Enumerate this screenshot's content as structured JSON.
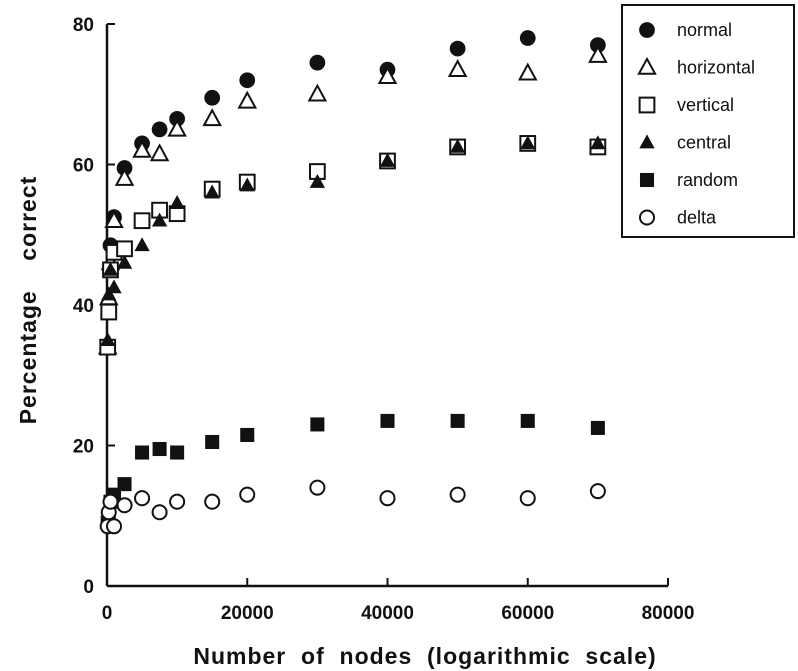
{
  "chart_data": {
    "type": "scatter",
    "xlabel": "Number  of  nodes  (logarithmic  scale)",
    "ylabel": "Percentage    correct",
    "xlim": [
      0,
      80000
    ],
    "ylim": [
      0,
      80
    ],
    "xticks": [
      0,
      20000,
      40000,
      60000,
      80000
    ],
    "yticks": [
      0,
      20,
      40,
      60,
      80
    ],
    "grid": false,
    "legend_position": "top-right",
    "series": [
      {
        "name": "normal",
        "marker": "circle-filled",
        "x": [
          100,
          250,
          500,
          1000,
          2500,
          5000,
          7500,
          10000,
          15000,
          20000,
          30000,
          40000,
          50000,
          60000,
          70000
        ],
        "y": [
          34,
          40,
          48.5,
          52.5,
          59.5,
          63,
          65,
          66.5,
          69.5,
          72,
          74.5,
          73.5,
          76.5,
          78,
          77
        ]
      },
      {
        "name": "horizontal",
        "marker": "triangle-open",
        "x": [
          100,
          250,
          500,
          1000,
          2500,
          5000,
          7500,
          10000,
          15000,
          20000,
          30000,
          40000,
          50000,
          60000,
          70000
        ],
        "y": [
          34,
          41,
          46,
          52,
          58,
          62,
          61.5,
          65,
          66.5,
          69,
          70,
          72.5,
          73.5,
          73,
          75.5
        ]
      },
      {
        "name": "vertical",
        "marker": "square-open",
        "x": [
          100,
          250,
          500,
          1000,
          2500,
          5000,
          7500,
          10000,
          15000,
          20000,
          30000,
          40000,
          50000,
          60000,
          70000
        ],
        "y": [
          34,
          39,
          45,
          47.5,
          48,
          52,
          53.5,
          53,
          56.5,
          57.5,
          59,
          60.5,
          62.5,
          63,
          62.5
        ]
      },
      {
        "name": "central",
        "marker": "triangle-filled",
        "x": [
          100,
          250,
          500,
          1000,
          2500,
          5000,
          7500,
          10000,
          15000,
          20000,
          30000,
          40000,
          50000,
          60000,
          70000
        ],
        "y": [
          35,
          41.5,
          45,
          42.5,
          46,
          48.5,
          52,
          54.5,
          56,
          57,
          57.5,
          60.5,
          62.5,
          63,
          63
        ]
      },
      {
        "name": "random",
        "marker": "square-filled",
        "x": [
          100,
          250,
          500,
          1000,
          2500,
          5000,
          7500,
          10000,
          15000,
          20000,
          30000,
          40000,
          50000,
          60000,
          70000
        ],
        "y": [
          9,
          10,
          12,
          13,
          14.5,
          19,
          19.5,
          19,
          20.5,
          21.5,
          23,
          23.5,
          23.5,
          23.5,
          22.5
        ]
      },
      {
        "name": "delta",
        "marker": "circle-open",
        "x": [
          100,
          250,
          500,
          1000,
          2500,
          5000,
          7500,
          10000,
          15000,
          20000,
          30000,
          40000,
          50000,
          60000,
          70000
        ],
        "y": [
          8.5,
          10.5,
          12,
          8.5,
          11.5,
          12.5,
          10.5,
          12,
          12,
          13,
          14,
          12.5,
          13,
          12.5,
          13.5
        ]
      }
    ]
  }
}
